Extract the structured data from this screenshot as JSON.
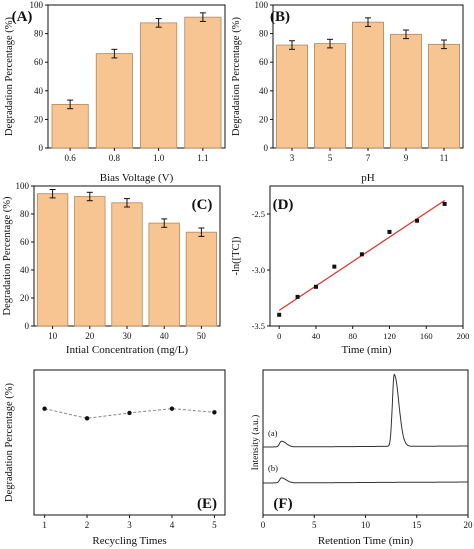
{
  "colors": {
    "bar_fill": "#f7c592",
    "bar_stroke": "#b98758",
    "axis": "#111111",
    "fit_line": "#e0302a",
    "point": "#111111",
    "e_line": "#888888",
    "e_point": "#111111"
  },
  "chart_data": [
    {
      "panel": "(A)",
      "type": "bar",
      "categories": [
        "0.6",
        "0.8",
        "1.0",
        "1.1"
      ],
      "values": [
        30.5,
        66,
        87.5,
        91.5
      ],
      "errors": [
        3,
        3,
        3,
        3
      ],
      "xlabel": "Bias Voltage (V)",
      "ylabel": "Degradation Percentage (%)",
      "ylim": [
        0,
        100
      ],
      "yticks": [
        0,
        20,
        40,
        60,
        80,
        100
      ]
    },
    {
      "panel": "(B)",
      "type": "bar",
      "categories": [
        "3",
        "5",
        "7",
        "9",
        "11"
      ],
      "values": [
        72,
        73,
        88,
        79.5,
        72.5
      ],
      "errors": [
        3,
        3,
        3,
        3,
        3
      ],
      "xlabel": "pH",
      "ylabel": "Degradation Percentage (%)",
      "ylim": [
        0,
        100
      ],
      "yticks": [
        0,
        20,
        40,
        60,
        80,
        100
      ]
    },
    {
      "panel": "(C)",
      "type": "bar",
      "categories": [
        "10",
        "20",
        "30",
        "40",
        "50"
      ],
      "values": [
        94.5,
        92.5,
        88,
        73.5,
        67
      ],
      "errors": [
        3,
        3,
        3,
        3,
        3
      ],
      "xlabel": "Intial Concentration (mg/L)",
      "ylabel": "Degradation Percentage (%)",
      "ylim": [
        0,
        100
      ],
      "yticks": [
        0,
        20,
        40,
        60,
        80,
        100
      ]
    },
    {
      "panel": "(D)",
      "type": "scatter",
      "x": [
        0,
        20,
        40,
        60,
        90,
        120,
        150,
        180
      ],
      "y": [
        -3.4,
        -3.24,
        -3.15,
        -2.97,
        -2.86,
        -2.66,
        -2.56,
        -2.41
      ],
      "fit": {
        "x": [
          0,
          180
        ],
        "y": [
          -3.36,
          -2.38
        ]
      },
      "xlabel": "Time (min)",
      "ylabel": "-ln([TC])",
      "xlim": [
        -10,
        200
      ],
      "ylim": [
        -3.5,
        -2.25
      ],
      "xticks": [
        "0",
        "40",
        "80",
        "120",
        "160",
        "200"
      ],
      "yticks": [
        "-3.5",
        "-3.0",
        "-2.5"
      ]
    },
    {
      "panel": "(E)",
      "type": "line",
      "x": [
        1,
        2,
        3,
        4,
        5
      ],
      "y": [
        88,
        80,
        84.5,
        88,
        85
      ],
      "xlabel": "Recycling Times",
      "ylabel": "Degradation Percentage (%)",
      "xlim": [
        0.75,
        5.25
      ],
      "ylim": [
        0,
        120
      ],
      "xticks": [
        "1",
        "2",
        "3",
        "4",
        "5"
      ]
    },
    {
      "panel": "(F)",
      "type": "line",
      "xlabel": "Retention Time (min)",
      "ylabel": "Intensity (a.u.)",
      "xlim": [
        0,
        20
      ],
      "xticks": [
        "0",
        "5",
        "10",
        "15",
        "20"
      ],
      "series": [
        {
          "name": "(a)",
          "peaks": [
            {
              "x": 1.8,
              "height": 0.08
            },
            {
              "x": 12.8,
              "height": 1.0
            }
          ]
        },
        {
          "name": "(b)",
          "peaks": [
            {
              "x": 1.8,
              "height": 0.07
            }
          ]
        }
      ]
    }
  ]
}
